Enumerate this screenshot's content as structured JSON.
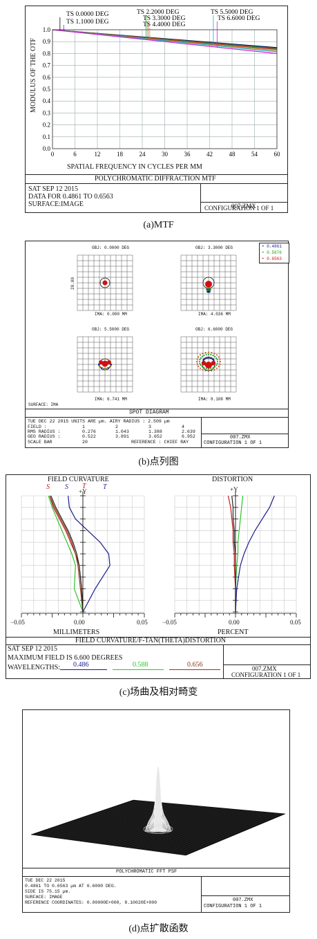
{
  "mtf": {
    "field_labels": [
      "TS 0.0000 DEG",
      "TS 1.1000 DEG",
      "TS 2.2000 DEG",
      "TS 3.3000 DEG",
      "TS 4.4000 DEG",
      "TS 5.5000 DEG",
      "TS 6.6000 DEG"
    ],
    "ylabel": "MODULUS OF THE OTF",
    "xlabel": "SPATIAL FREQUENCY IN CYCLES PER MM",
    "title": "POLYCHROMATIC DIFFRACTION MTF",
    "info": [
      "SAT SEP 12 2015",
      "DATA FOR 0.4861 TO 0.6563",
      "SURFACE:IMAGE"
    ],
    "file": "007.ZMX",
    "config": "CONFIGURATION 1 OF 1",
    "caption": "(a)MTF"
  },
  "spot": {
    "field_titles": [
      "OBJ: 0.0000 DEG",
      "OBJ: 3.3000 DEG",
      "OBJ: 5.5000 DEG",
      "OBJ: 6.6000 DEG"
    ],
    "ima_labels": [
      "IMA: 0.000 MM",
      "IMA: 4.036 MM",
      "IMA: 6.741 MM",
      "IMA: 8.108 MM"
    ],
    "scale_label": "20.00",
    "legend": [
      {
        "label": "0.4861",
        "color": "#1a1a8c"
      },
      {
        "label": "0.5876",
        "color": "#10a010"
      },
      {
        "label": "0.6563",
        "color": "#d01010"
      }
    ],
    "surface": "SURFACE: IMA",
    "title": "SPOT DIAGRAM",
    "header_line": "TUE DEC 22 2015  UNITS ARE µm.  AIRY RADIUS : 2.509 µm",
    "rows": [
      {
        "label": "FIELD",
        "values": [
          "1",
          "2",
          "3",
          "4"
        ]
      },
      {
        "label": "RMS RADIUS",
        "values": [
          "0.276",
          "1.043",
          "1.388",
          "2.639"
        ]
      },
      {
        "label": "GEO RADIUS",
        "values": [
          "0.522",
          "3.891",
          "3.652",
          "6.952"
        ]
      }
    ],
    "scale_row_label": "SCALE BAR",
    "scale_row_value": "20",
    "reference": "REFERENCE : CHIEF RAY",
    "file": "007.ZMX",
    "config": "CONFIGURATION 1 OF 1",
    "caption": "(b)点列图"
  },
  "fc": {
    "left_title": "FIELD CURVATURE",
    "right_title": "DISTORTION",
    "st_labels": [
      {
        "text": "S",
        "color": "#c01818"
      },
      {
        "text": "S",
        "color": "#2a2a9a"
      },
      {
        "text": "T",
        "color": "#c01818"
      },
      {
        "text": "T",
        "color": "#2a2a9a"
      }
    ],
    "plus_y": "+Y",
    "left_ticks": [
      "−0.05",
      "0.00",
      "0.05"
    ],
    "right_ticks": [
      "−0.05",
      "0.00",
      "0.05"
    ],
    "left_xlabel": "MILLIMETERS",
    "right_xlabel": "PERCENT",
    "title": "FIELD CURVATURE/F-TAN(THETA)DISTORTION",
    "info": [
      "SAT SEP 12 2015",
      "MAXIMUM FIELD IS 6.600 DEGREES"
    ],
    "wl_label": "WAVELENGTHS:",
    "wavelengths": [
      {
        "label": "0.486",
        "color": "#1a1a8c"
      },
      {
        "label": "0.588",
        "color": "#2bc42b"
      },
      {
        "label": "0.656",
        "color": "#8a3a1a"
      }
    ],
    "file": "007.ZMX",
    "config": "CONFIGURATION 1 OF 1",
    "caption": "(c)场曲及相对畸变"
  },
  "psf": {
    "title": "POLYCHROMATIC FFT PSF",
    "info": [
      "TUE DEC 22 2015",
      "0.4861 TO 0.6563 µm AT 6.6000 DEG.",
      "SIDE IS 75.15 µm.",
      "SURFACE: IMAGE",
      "REFERENCE COORDINATES: 0.00000E+000, 8.10020E+000"
    ],
    "file": "007.ZMX",
    "config": "CONFIGURATION 1 OF 1",
    "caption": "(d)点扩散函数"
  },
  "chart_data": [
    {
      "type": "line",
      "title": "POLYCHROMATIC DIFFRACTION MTF",
      "xlabel": "SPATIAL FREQUENCY IN CYCLES PER MM",
      "ylabel": "MODULUS OF THE OTF",
      "xlim": [
        0,
        60
      ],
      "ylim": [
        0,
        1.0
      ],
      "xticks": [
        0,
        6,
        12,
        18,
        24,
        30,
        36,
        42,
        48,
        54,
        60
      ],
      "yticks": [
        0.0,
        0.1,
        0.2,
        0.3,
        0.4,
        0.5,
        0.6,
        0.7,
        0.8,
        0.9,
        1.0
      ],
      "series": [
        {
          "name": "TS 0.0000 DEG",
          "color": "#000000",
          "x": [
            0,
            60
          ],
          "y": [
            1.0,
            0.85
          ]
        },
        {
          "name": "TS 1.1000 DEG",
          "color": "#2244cc",
          "x": [
            0,
            60
          ],
          "y": [
            1.0,
            0.845
          ]
        },
        {
          "name": "TS 2.2000 DEG",
          "color": "#22aa22",
          "x": [
            0,
            60
          ],
          "y": [
            1.0,
            0.84
          ]
        },
        {
          "name": "TS 3.3000 DEG",
          "color": "#cc2222",
          "x": [
            0,
            60
          ],
          "y": [
            1.0,
            0.835
          ]
        },
        {
          "name": "TS 4.4000 DEG",
          "color": "#aa8822",
          "x": [
            0,
            60
          ],
          "y": [
            1.0,
            0.825
          ]
        },
        {
          "name": "TS 5.5000 DEG",
          "color": "#22aacc",
          "x": [
            0,
            60
          ],
          "y": [
            1.0,
            0.815
          ]
        },
        {
          "name": "TS 6.6000 DEG",
          "color": "#cc22cc",
          "x": [
            0,
            60
          ],
          "y": [
            1.0,
            0.8
          ]
        }
      ]
    },
    {
      "type": "line",
      "title": "FIELD CURVATURE",
      "xlabel": "MILLIMETERS",
      "xlim": [
        -0.05,
        0.05
      ],
      "ylim": [
        0,
        1
      ],
      "series": [
        {
          "color": "#1a1a8c",
          "x": [
            -0.012,
            -0.011,
            -0.006,
            0.004,
            0.014,
            0.021,
            0.022,
            0.01,
            0.0
          ],
          "y": [
            1.0,
            0.9,
            0.8,
            0.7,
            0.6,
            0.5,
            0.4,
            0.2,
            0.0
          ]
        },
        {
          "color": "#c01818",
          "x": [
            -0.027,
            -0.024,
            -0.019,
            -0.014,
            -0.01,
            -0.006,
            -0.003,
            -0.001,
            0.0
          ],
          "y": [
            1.0,
            0.9,
            0.8,
            0.7,
            0.6,
            0.5,
            0.4,
            0.2,
            0.0
          ]
        },
        {
          "color": "#2bc42b",
          "x": [
            -0.028,
            -0.025,
            -0.021,
            -0.017,
            -0.013,
            -0.009,
            -0.006,
            -0.007,
            0.0
          ],
          "y": [
            1.0,
            0.9,
            0.8,
            0.7,
            0.6,
            0.5,
            0.4,
            0.2,
            0.0
          ]
        },
        {
          "color": "#8a3a1a",
          "x": [
            -0.027,
            -0.023,
            -0.018,
            -0.013,
            -0.009,
            -0.006,
            -0.004,
            -0.002,
            0.0
          ],
          "y": [
            1.0,
            0.9,
            0.8,
            0.7,
            0.6,
            0.5,
            0.4,
            0.2,
            0.0
          ]
        },
        {
          "color": "#222222",
          "x": [
            -0.026,
            -0.022,
            -0.017,
            -0.012,
            -0.008,
            -0.005,
            -0.003,
            -0.001,
            0.0
          ],
          "y": [
            1.0,
            0.9,
            0.8,
            0.7,
            0.6,
            0.5,
            0.4,
            0.2,
            0.0
          ]
        }
      ]
    },
    {
      "type": "line",
      "title": "DISTORTION",
      "xlabel": "PERCENT",
      "xlim": [
        -0.05,
        0.05
      ],
      "ylim": [
        0,
        1
      ],
      "series": [
        {
          "color": "#1a1a8c",
          "x": [
            0.032,
            0.028,
            0.022,
            0.016,
            0.011,
            0.007,
            0.004,
            0.001,
            0.0
          ],
          "y": [
            1.0,
            0.9,
            0.8,
            0.7,
            0.6,
            0.5,
            0.4,
            0.2,
            0.0
          ]
        },
        {
          "color": "#2bc42b",
          "x": [
            0.006,
            0.005,
            0.004,
            0.003,
            0.002,
            0.002,
            0.001,
            0.0,
            0.0
          ],
          "y": [
            1.0,
            0.9,
            0.8,
            0.7,
            0.6,
            0.5,
            0.4,
            0.2,
            0.0
          ]
        },
        {
          "color": "#c01818",
          "x": [
            -0.006,
            -0.004,
            -0.003,
            -0.002,
            -0.002,
            -0.001,
            -0.001,
            0.0,
            0.0
          ],
          "y": [
            1.0,
            0.9,
            0.8,
            0.7,
            0.6,
            0.5,
            0.4,
            0.2,
            0.0
          ]
        },
        {
          "color": "#222222",
          "x": [
            -0.003,
            -0.002,
            -0.002,
            -0.001,
            -0.001,
            0.0,
            0.0,
            0.0,
            0.0
          ],
          "y": [
            1.0,
            0.9,
            0.8,
            0.7,
            0.6,
            0.5,
            0.4,
            0.2,
            0.0
          ]
        }
      ]
    }
  ]
}
